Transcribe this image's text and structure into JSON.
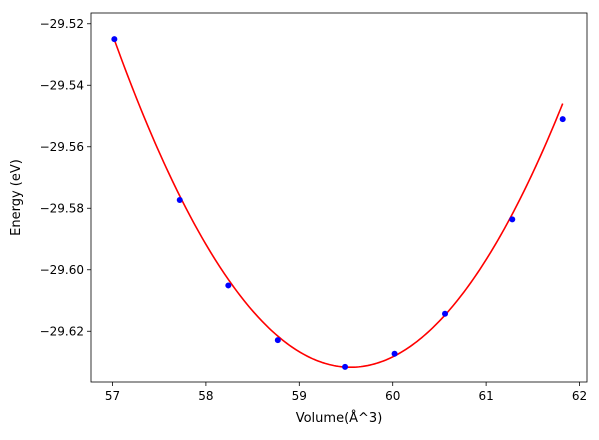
{
  "chart_data": {
    "type": "line",
    "title": "",
    "xlabel": "Volume(Å^3)",
    "ylabel": "Energy (eV)",
    "xlim": [
      56.77,
      62.08
    ],
    "ylim": [
      -29.6365,
      -29.5165
    ],
    "grid": false,
    "legend": "none",
    "x_ticks": [
      57,
      58,
      59,
      60,
      61,
      62
    ],
    "x_tick_labels": [
      "57",
      "58",
      "59",
      "60",
      "61",
      "62"
    ],
    "y_ticks": [
      -29.52,
      -29.54,
      -29.56,
      -29.58,
      -29.6,
      -29.62
    ],
    "y_tick_labels": [
      "−29.52",
      "−29.54",
      "−29.56",
      "−29.58",
      "−29.60",
      "−29.62"
    ],
    "series": [
      {
        "kind": "scatter",
        "color": "#0000ff",
        "x": [
          57.02,
          57.72,
          58.24,
          58.77,
          59.49,
          60.02,
          60.56,
          61.28,
          61.82
        ],
        "y": [
          -29.525,
          -29.5773,
          -29.6051,
          -29.6229,
          -29.6316,
          -29.6273,
          -29.6143,
          -29.5836,
          -29.551
        ]
      },
      {
        "kind": "fit",
        "color": "#ff0000",
        "x_start": 57.02,
        "x_end": 61.82,
        "curve": {
          "form": "quadratic",
          "x_min": 59.55,
          "y_min": -29.6317,
          "curvature": 0.01664
        }
      }
    ]
  }
}
